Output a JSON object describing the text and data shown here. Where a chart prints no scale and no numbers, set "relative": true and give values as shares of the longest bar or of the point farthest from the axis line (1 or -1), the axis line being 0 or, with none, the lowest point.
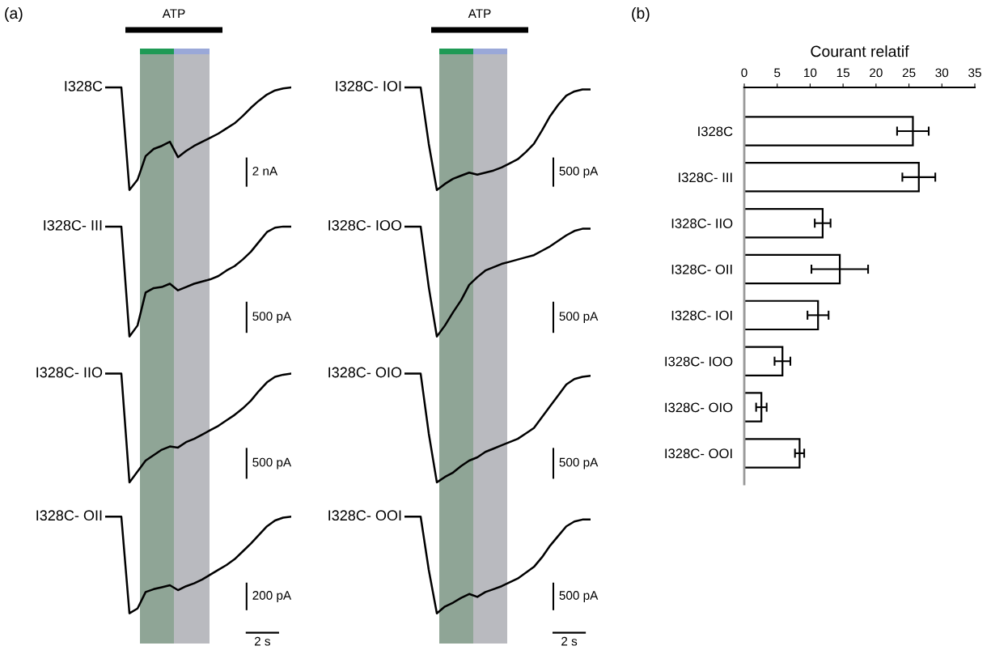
{
  "chart_data": [
    {
      "type": "line",
      "relative": true,
      "tick_labels": false,
      "categories": [
        null,
        null,
        null,
        null,
        null,
        null,
        null,
        null,
        null,
        null,
        null,
        null,
        null,
        null,
        null,
        null,
        null,
        null,
        null,
        null,
        null,
        null,
        null,
        null
      ],
      "series": [
        {
          "name": "I328C",
          "color": "#000000",
          "values": [
            1,
            1,
            1,
            0.0,
            0.1,
            0.33,
            0.4,
            0.43,
            0.47,
            0.32,
            0.38,
            0.43,
            0.47,
            0.51,
            0.55,
            0.6,
            0.65,
            0.72,
            0.8,
            0.87,
            0.93,
            0.97,
            0.99,
            1.0
          ]
        }
      ],
      "annotations": [
        "2 nA",
        "(a)",
        "ATP"
      ]
    },
    {
      "type": "line",
      "relative": true,
      "tick_labels": false,
      "categories": [
        null,
        null,
        null,
        null,
        null,
        null,
        null,
        null,
        null,
        null,
        null,
        null,
        null,
        null,
        null,
        null,
        null,
        null,
        null,
        null,
        null,
        null,
        null,
        null
      ],
      "series": [
        {
          "name": "I328C- III",
          "color": "#000000",
          "values": [
            1,
            1,
            1,
            0.0,
            0.1,
            0.4,
            0.44,
            0.45,
            0.48,
            0.42,
            0.45,
            0.48,
            0.5,
            0.52,
            0.55,
            0.6,
            0.64,
            0.7,
            0.77,
            0.86,
            0.95,
            0.99,
            1.0,
            1.0
          ]
        }
      ],
      "annotations": [
        "500 pA"
      ]
    },
    {
      "type": "line",
      "relative": true,
      "tick_labels": false,
      "categories": [
        null,
        null,
        null,
        null,
        null,
        null,
        null,
        null,
        null,
        null,
        null,
        null,
        null,
        null,
        null,
        null,
        null,
        null,
        null,
        null,
        null,
        null,
        null,
        null
      ],
      "series": [
        {
          "name": "I328C- IIO",
          "color": "#000000",
          "values": [
            1,
            1,
            1,
            0.0,
            0.1,
            0.2,
            0.25,
            0.3,
            0.33,
            0.32,
            0.37,
            0.4,
            0.44,
            0.48,
            0.52,
            0.57,
            0.62,
            0.68,
            0.75,
            0.84,
            0.92,
            0.97,
            0.99,
            1.0
          ]
        }
      ],
      "annotations": [
        "500 pA"
      ]
    },
    {
      "type": "line",
      "relative": true,
      "tick_labels": false,
      "categories": [
        null,
        null,
        null,
        null,
        null,
        null,
        null,
        null,
        null,
        null,
        null,
        null,
        null,
        null,
        null,
        null,
        null,
        null,
        null,
        null,
        null,
        null,
        null,
        null
      ],
      "series": [
        {
          "name": "I328C- OII",
          "color": "#000000",
          "values": [
            1,
            1,
            1,
            0.0,
            0.05,
            0.22,
            0.25,
            0.27,
            0.29,
            0.24,
            0.28,
            0.31,
            0.35,
            0.4,
            0.45,
            0.5,
            0.56,
            0.64,
            0.72,
            0.81,
            0.9,
            0.96,
            0.99,
            1.0
          ]
        }
      ],
      "annotations": [
        "200 pA",
        "2 s"
      ]
    },
    {
      "type": "line",
      "relative": true,
      "tick_labels": false,
      "categories": [
        null,
        null,
        null,
        null,
        null,
        null,
        null,
        null,
        null,
        null,
        null,
        null,
        null,
        null,
        null,
        null,
        null,
        null,
        null,
        null,
        null,
        null,
        null,
        null
      ],
      "series": [
        {
          "name": "I328C- IOI",
          "color": "#000000",
          "values": [
            1,
            1,
            1,
            0.45,
            0.0,
            0.06,
            0.11,
            0.14,
            0.17,
            0.15,
            0.17,
            0.19,
            0.22,
            0.26,
            0.3,
            0.37,
            0.45,
            0.58,
            0.72,
            0.83,
            0.92,
            0.96,
            0.98,
            0.98
          ]
        }
      ],
      "annotations": [
        "500 pA",
        "ATP"
      ]
    },
    {
      "type": "line",
      "relative": true,
      "tick_labels": false,
      "categories": [
        null,
        null,
        null,
        null,
        null,
        null,
        null,
        null,
        null,
        null,
        null,
        null,
        null,
        null,
        null,
        null,
        null,
        null,
        null,
        null,
        null,
        null,
        null,
        null
      ],
      "series": [
        {
          "name": "I328C- IOO",
          "color": "#000000",
          "values": [
            1,
            1,
            1,
            0.45,
            0.0,
            0.1,
            0.22,
            0.33,
            0.47,
            0.54,
            0.6,
            0.63,
            0.66,
            0.68,
            0.7,
            0.72,
            0.74,
            0.78,
            0.82,
            0.87,
            0.92,
            0.96,
            0.98,
            0.98
          ]
        }
      ],
      "annotations": [
        "500 pA"
      ]
    },
    {
      "type": "line",
      "relative": true,
      "tick_labels": false,
      "categories": [
        null,
        null,
        null,
        null,
        null,
        null,
        null,
        null,
        null,
        null,
        null,
        null,
        null,
        null,
        null,
        null,
        null,
        null,
        null,
        null,
        null,
        null,
        null,
        null
      ],
      "series": [
        {
          "name": "I328C- OIO",
          "color": "#000000",
          "values": [
            1,
            1,
            1,
            0.45,
            0.0,
            0.05,
            0.09,
            0.15,
            0.2,
            0.23,
            0.28,
            0.31,
            0.34,
            0.37,
            0.4,
            0.45,
            0.5,
            0.6,
            0.7,
            0.8,
            0.9,
            0.95,
            0.97,
            0.98
          ]
        }
      ],
      "annotations": [
        "500 pA"
      ]
    },
    {
      "type": "line",
      "relative": true,
      "tick_labels": false,
      "categories": [
        null,
        null,
        null,
        null,
        null,
        null,
        null,
        null,
        null,
        null,
        null,
        null,
        null,
        null,
        null,
        null,
        null,
        null,
        null,
        null,
        null,
        null,
        null,
        null
      ],
      "series": [
        {
          "name": "I328C- OOI",
          "color": "#000000",
          "values": [
            1,
            1,
            1,
            0.45,
            0.0,
            0.07,
            0.11,
            0.16,
            0.2,
            0.17,
            0.22,
            0.25,
            0.28,
            0.32,
            0.36,
            0.42,
            0.48,
            0.58,
            0.7,
            0.8,
            0.9,
            0.95,
            0.97,
            0.97
          ]
        }
      ],
      "annotations": [
        "500 pA",
        "2 s"
      ]
    },
    {
      "type": "bar",
      "orientation": "horizontal",
      "xlabel": "Courant relatif",
      "color": "#ffffff",
      "categories": [
        "I328C",
        "I328C- III",
        "I328C- IIO",
        "I328C- OII",
        "I328C- IOI",
        "I328C- IOO",
        "I328C- OIO",
        "I328C- OOI"
      ],
      "values": [
        25.6,
        26.5,
        11.9,
        14.5,
        11.2,
        5.8,
        2.6,
        8.4
      ],
      "errors": [
        2.4,
        2.5,
        1.2,
        4.3,
        1.6,
        1.2,
        0.8,
        0.7
      ],
      "xlim": [
        0,
        35
      ],
      "xticks": [
        0,
        5,
        10,
        15,
        20,
        25,
        30,
        35
      ],
      "annotations": [
        "(b)"
      ]
    }
  ]
}
